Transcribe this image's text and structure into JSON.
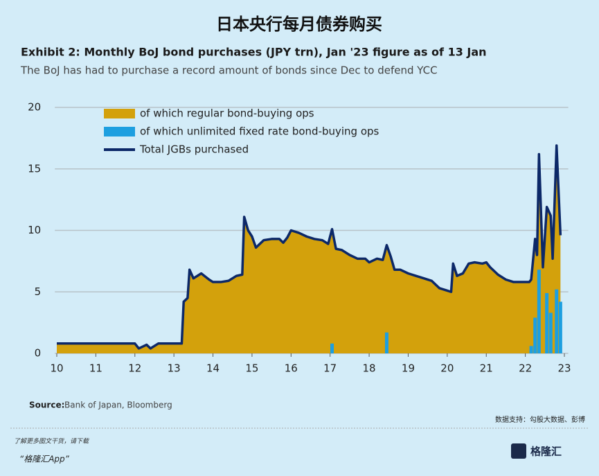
{
  "header": {
    "title": "日本央行每月债券购买"
  },
  "chart_data": {
    "type": "line",
    "title": "Exhibit 2: Monthly BoJ bond purchases (JPY trn), Jan '23 figure as of 13 Jan",
    "subtitle": "The BoJ has had to purchase a record amount of bonds since Dec to defend YCC",
    "xlim": [
      9.95,
      23.1
    ],
    "xticks": [
      10,
      11,
      12,
      13,
      14,
      15,
      16,
      17,
      18,
      19,
      20,
      21,
      22,
      23
    ],
    "ylim": [
      0,
      20
    ],
    "yticks": [
      0,
      5,
      10,
      15,
      20
    ],
    "grid": true,
    "legend": "top-left",
    "series": [
      {
        "name": "of which regular bond-buying ops",
        "color": "#d3a10c",
        "type": "area",
        "x": [
          10.0,
          10.5,
          11,
          11.5,
          12,
          12.1,
          12.3,
          12.4,
          12.6,
          13,
          13.2,
          13.25,
          13.35,
          13.4,
          13.5,
          13.7,
          13.9,
          14.0,
          14.2,
          14.4,
          14.6,
          14.75,
          14.8,
          14.9,
          15.0,
          15.1,
          15.3,
          15.5,
          15.7,
          15.8,
          15.9,
          16.0,
          16.2,
          16.4,
          16.6,
          16.8,
          16.95,
          17.05,
          17.15,
          17.3,
          17.5,
          17.7,
          17.9,
          18.0,
          18.2,
          18.35,
          18.45,
          18.55,
          18.65,
          18.8,
          19.0,
          19.2,
          19.4,
          19.6,
          19.8,
          20.0,
          20.1,
          20.15,
          20.25,
          20.4,
          20.55,
          20.7,
          20.9,
          21.0,
          21.1,
          21.3,
          21.5,
          21.7,
          21.9,
          22.1,
          22.15,
          22.25,
          22.3,
          22.35,
          22.45,
          22.55,
          22.65,
          22.7,
          22.8,
          22.9
        ],
        "values": [
          0.8,
          0.8,
          0.8,
          0.8,
          0.8,
          0.4,
          0.7,
          0.4,
          0.8,
          0.8,
          0.8,
          4.2,
          4.5,
          6.8,
          6.1,
          6.5,
          6.0,
          5.8,
          5.8,
          5.9,
          6.3,
          6.4,
          11.1,
          10.0,
          9.5,
          8.6,
          9.2,
          9.3,
          9.3,
          9.0,
          9.4,
          10.0,
          9.8,
          9.5,
          9.3,
          9.2,
          8.9,
          10.1,
          8.5,
          8.4,
          8.0,
          7.7,
          7.7,
          7.4,
          7.7,
          7.6,
          8.8,
          7.9,
          6.8,
          6.8,
          6.5,
          6.3,
          6.1,
          5.9,
          5.3,
          5.1,
          5.0,
          7.3,
          6.3,
          6.5,
          7.3,
          7.4,
          7.3,
          7.4,
          7.0,
          6.4,
          6.0,
          5.8,
          5.8,
          5.8,
          6.0,
          9.3,
          8.0,
          16.2,
          7.0,
          11.9,
          11.2,
          7.7,
          16.9,
          9.6
        ]
      },
      {
        "name": "of which unlimited  fixed rate bond-buying ops",
        "color": "#1d9fe0",
        "type": "bar",
        "x": [
          17.05,
          18.45,
          22.15,
          22.25,
          22.35,
          22.55,
          22.65,
          22.8,
          22.9
        ],
        "values": [
          0.8,
          1.7,
          0.6,
          2.9,
          6.8,
          4.9,
          3.3,
          5.2,
          4.2
        ]
      },
      {
        "name": "Total JGBs purchased",
        "color": "#0c2868",
        "type": "line",
        "x": [
          10.0,
          10.5,
          11,
          11.5,
          12,
          12.1,
          12.3,
          12.4,
          12.6,
          13,
          13.2,
          13.25,
          13.35,
          13.4,
          13.5,
          13.7,
          13.9,
          14.0,
          14.2,
          14.4,
          14.6,
          14.75,
          14.8,
          14.9,
          15.0,
          15.1,
          15.3,
          15.5,
          15.7,
          15.8,
          15.9,
          16.0,
          16.2,
          16.4,
          16.6,
          16.8,
          16.95,
          17.05,
          17.15,
          17.3,
          17.5,
          17.7,
          17.9,
          18.0,
          18.2,
          18.35,
          18.45,
          18.55,
          18.65,
          18.8,
          19.0,
          19.2,
          19.4,
          19.6,
          19.8,
          20.0,
          20.1,
          20.15,
          20.25,
          20.4,
          20.55,
          20.7,
          20.9,
          21.0,
          21.1,
          21.3,
          21.5,
          21.7,
          21.9,
          22.1,
          22.15,
          22.25,
          22.3,
          22.35,
          22.45,
          22.55,
          22.65,
          22.7,
          22.8,
          22.9
        ],
        "values": [
          0.8,
          0.8,
          0.8,
          0.8,
          0.8,
          0.4,
          0.7,
          0.4,
          0.8,
          0.8,
          0.8,
          4.2,
          4.5,
          6.8,
          6.1,
          6.5,
          6.0,
          5.8,
          5.8,
          5.9,
          6.3,
          6.4,
          11.1,
          10.0,
          9.5,
          8.6,
          9.2,
          9.3,
          9.3,
          9.0,
          9.4,
          10.0,
          9.8,
          9.5,
          9.3,
          9.2,
          8.9,
          10.1,
          8.5,
          8.4,
          8.0,
          7.7,
          7.7,
          7.4,
          7.7,
          7.6,
          8.8,
          7.9,
          6.8,
          6.8,
          6.5,
          6.3,
          6.1,
          5.9,
          5.3,
          5.1,
          5.0,
          7.3,
          6.3,
          6.5,
          7.3,
          7.4,
          7.3,
          7.4,
          7.0,
          6.4,
          6.0,
          5.8,
          5.8,
          5.8,
          6.0,
          9.3,
          8.0,
          16.2,
          7.0,
          11.9,
          11.2,
          7.7,
          16.9,
          9.6
        ]
      }
    ],
    "source_label": "Source:",
    "source": "Bank of Japan, Bloomberg"
  },
  "footer": {
    "data_support": "数据支持：勾股大数据、彭博",
    "promo": "了解更多图文干货，请下载",
    "app": "“格隆汇App”",
    "logo": "格隆汇"
  }
}
